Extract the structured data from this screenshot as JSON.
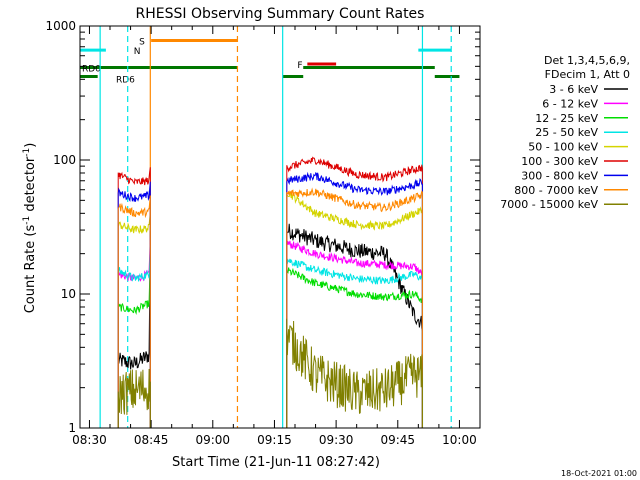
{
  "chart_data": {
    "type": "line",
    "title": "RHESSI Observing Summary Count Rates",
    "xlabel": "Start Time (21-Jun-11 08:27:42)",
    "ylabel_main": "Count Rate (s",
    "ylabel_sup1": "-1",
    "ylabel_mid": " detector",
    "ylabel_sup2": "-1",
    "ylabel_end": ")",
    "y_scale": "log",
    "ylim": [
      1,
      1000
    ],
    "xlim_minutes": [
      507.7,
      605.0
    ],
    "x_ticks": [
      {
        "m": 510,
        "label": "08:30"
      },
      {
        "m": 525,
        "label": "08:45"
      },
      {
        "m": 540,
        "label": "09:00"
      },
      {
        "m": 555,
        "label": "09:15"
      },
      {
        "m": 570,
        "label": "09:30"
      },
      {
        "m": 585,
        "label": "09:45"
      },
      {
        "m": 600,
        "label": "10:00"
      }
    ],
    "y_ticks": [
      {
        "v": 1,
        "label": "1"
      },
      {
        "v": 10,
        "label": "10"
      },
      {
        "v": 100,
        "label": "100"
      },
      {
        "v": 1000,
        "label": "1000"
      }
    ],
    "legend": {
      "position": "right",
      "header1": "Det 1,3,4,5,6,9,",
      "header2": "FDecim 1, Att 0"
    },
    "series": [
      {
        "name": "3 - 6 keV",
        "color": "#000000",
        "seg1": [
          [
            517.0,
            3.2
          ],
          [
            521.0,
            3.0
          ],
          [
            524.5,
            3.5
          ],
          [
            524.8,
            28
          ]
        ],
        "seg2": [
          [
            558.0,
            30
          ],
          [
            565.0,
            25
          ],
          [
            575.0,
            21
          ],
          [
            582.0,
            20
          ],
          [
            589.0,
            7
          ],
          [
            591.0,
            6
          ]
        ]
      },
      {
        "name": "6 - 12 keV",
        "color": "#ff00ff",
        "seg1": [
          [
            517.0,
            14
          ],
          [
            521.0,
            13
          ],
          [
            524.5,
            14
          ],
          [
            524.8,
            26
          ]
        ],
        "seg2": [
          [
            558.0,
            24
          ],
          [
            565.0,
            20
          ],
          [
            575.0,
            17
          ],
          [
            582.0,
            16.5
          ],
          [
            589.0,
            16
          ],
          [
            591.0,
            14
          ]
        ]
      },
      {
        "name": "12 - 25 keV",
        "color": "#00dd00",
        "seg1": [
          [
            517.0,
            8
          ],
          [
            521.0,
            7.5
          ],
          [
            524.5,
            8.5
          ],
          [
            524.8,
            18
          ]
        ],
        "seg2": [
          [
            558.0,
            15
          ],
          [
            565.0,
            12
          ],
          [
            575.0,
            10
          ],
          [
            582.0,
            9.5
          ],
          [
            589.0,
            10
          ],
          [
            591.0,
            9
          ]
        ]
      },
      {
        "name": "25 - 50 keV",
        "color": "#00e5e5",
        "seg1": [
          [
            517.0,
            15
          ],
          [
            521.0,
            13
          ],
          [
            524.5,
            14
          ],
          [
            524.8,
            24
          ]
        ],
        "seg2": [
          [
            558.0,
            18
          ],
          [
            565.0,
            15
          ],
          [
            575.0,
            13
          ],
          [
            582.0,
            12.5
          ],
          [
            589.0,
            14
          ],
          [
            591.0,
            13
          ]
        ]
      },
      {
        "name": "50 - 100 keV",
        "color": "#d4d400",
        "seg1": [
          [
            517.0,
            33
          ],
          [
            521.0,
            30
          ],
          [
            524.5,
            31
          ],
          [
            524.8,
            40
          ]
        ],
        "seg2": [
          [
            558.0,
            58
          ],
          [
            565.0,
            40
          ],
          [
            575.0,
            33
          ],
          [
            582.0,
            32
          ],
          [
            589.0,
            40
          ],
          [
            591.0,
            42
          ]
        ]
      },
      {
        "name": "100 - 300 keV",
        "color": "#dd0000",
        "seg1": [
          [
            517.0,
            78
          ],
          [
            521.0,
            68
          ],
          [
            524.5,
            70
          ],
          [
            524.8,
            90
          ]
        ],
        "seg2": [
          [
            558.0,
            88
          ],
          [
            565.0,
            100
          ],
          [
            575.0,
            78
          ],
          [
            582.0,
            74
          ],
          [
            589.0,
            85
          ],
          [
            591.0,
            88
          ]
        ]
      },
      {
        "name": "300 - 800 keV",
        "color": "#0000ee",
        "seg1": [
          [
            517.0,
            57
          ],
          [
            521.0,
            52
          ],
          [
            524.5,
            54
          ],
          [
            524.8,
            70
          ]
        ],
        "seg2": [
          [
            558.0,
            70
          ],
          [
            565.0,
            76
          ],
          [
            575.0,
            60
          ],
          [
            582.0,
            58
          ],
          [
            589.0,
            65
          ],
          [
            591.0,
            68
          ]
        ]
      },
      {
        "name": "800 - 7000 keV",
        "color": "#ff8800",
        "seg1": [
          [
            517.0,
            45
          ],
          [
            521.0,
            40
          ],
          [
            524.5,
            41
          ],
          [
            524.8,
            55
          ]
        ],
        "seg2": [
          [
            558.0,
            56
          ],
          [
            565.0,
            58
          ],
          [
            575.0,
            46
          ],
          [
            582.0,
            44
          ],
          [
            589.0,
            52
          ],
          [
            591.0,
            55
          ]
        ]
      },
      {
        "name": "7000 - 15000 keV",
        "color": "#808000",
        "seg1": [
          [
            517.0,
            1.8
          ],
          [
            521.0,
            1.9
          ],
          [
            524.5,
            2.0
          ],
          [
            524.8,
            2.3
          ]
        ],
        "seg2": [
          [
            558.0,
            5
          ],
          [
            565.0,
            2.5
          ],
          [
            575.0,
            1.8
          ],
          [
            582.0,
            1.9
          ],
          [
            589.0,
            2.5
          ],
          [
            591.0,
            2.4
          ]
        ]
      }
    ],
    "flags": [
      {
        "label": "S",
        "color": "#ff8800",
        "y": 780,
        "x0": 525.0,
        "x1": 546.0
      },
      {
        "label": "F",
        "color": "#dd0000",
        "y": 520,
        "x0": 563.0,
        "x1": 570.0
      },
      {
        "label": "N",
        "color": "#00e5e5",
        "y": 660,
        "x0_a": 507.7,
        "x1_a": 514.0,
        "x0_b": 590.0,
        "x1_b": 598.0
      },
      {
        "label": "RD0",
        "color": "#007700",
        "y": 490,
        "x0_a": 507.7,
        "x1_a": 546.0,
        "x0_b": 562.0,
        "x1_b": 594.0
      },
      {
        "label": "RD6",
        "color": "#007700",
        "y": 420,
        "x0_a": 507.7,
        "x1_a": 512.0,
        "x0_b": 557.0,
        "x1_b": 562.0,
        "x0_c": 594.0,
        "x1_c": 600.0
      }
    ],
    "vlines": [
      {
        "m": 512.6,
        "color": "#00e5e5",
        "dash": false
      },
      {
        "m": 519.3,
        "color": "#00e5e5",
        "dash": true
      },
      {
        "m": 524.8,
        "color": "#ff8800",
        "dash": false
      },
      {
        "m": 546.0,
        "color": "#ff8800",
        "dash": true
      },
      {
        "m": 557.0,
        "color": "#00e5e5",
        "dash": false
      },
      {
        "m": 591.0,
        "color": "#00e5e5",
        "dash": false
      },
      {
        "m": 598.0,
        "color": "#00e5e5",
        "dash": true
      }
    ],
    "footer_date": "18-Oct-2021 01:00"
  }
}
